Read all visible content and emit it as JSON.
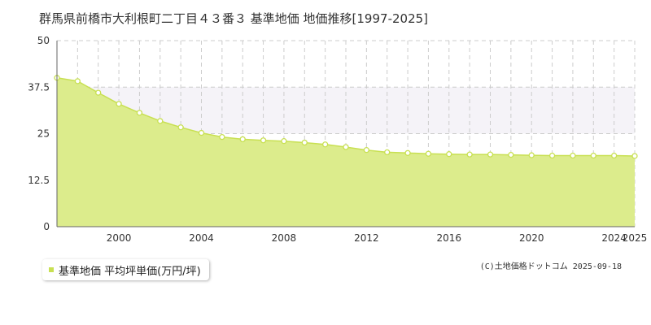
{
  "title": "群馬県前橋市大利根町二丁目４３番３ 基準地価 地価推移[1997-2025]",
  "legend": {
    "label": "基準地価 平均坪単価(万円/坪)"
  },
  "credit": "(C)土地価格ドットコム 2025-09-18",
  "colors": {
    "fill": "#dcec8c",
    "line": "#c8e052",
    "point_fill": "#ffffff",
    "grid": "#cccccc",
    "band": "#f5f3f8",
    "axis": "#666666"
  },
  "chart_data": {
    "type": "area",
    "title": "群馬県前橋市大利根町二丁目４３番３ 基準地価 地価推移[1997-2025]",
    "xlabel": "",
    "ylabel": "",
    "xlim": [
      1997,
      2025
    ],
    "ylim": [
      0,
      50
    ],
    "yticks": [
      0,
      12.5,
      25,
      37.5,
      50
    ],
    "ytick_labels": [
      "0",
      "12.5",
      "25",
      "37.5",
      "50"
    ],
    "xtick_labels": [
      "2000",
      "2004",
      "2008",
      "2012",
      "2016",
      "2020",
      "2024",
      "2025"
    ],
    "grid": true,
    "series": [
      {
        "name": "基準地価 平均坪単価(万円/坪)",
        "x": [
          1997,
          1998,
          1999,
          2000,
          2001,
          2002,
          2003,
          2004,
          2005,
          2006,
          2007,
          2008,
          2009,
          2010,
          2011,
          2012,
          2013,
          2014,
          2015,
          2016,
          2017,
          2018,
          2019,
          2020,
          2021,
          2022,
          2023,
          2024,
          2025
        ],
        "y": [
          40.0,
          39.1,
          36.0,
          33.0,
          30.6,
          28.4,
          26.7,
          25.2,
          24.1,
          23.5,
          23.2,
          23.0,
          22.6,
          22.1,
          21.4,
          20.6,
          20.0,
          19.8,
          19.6,
          19.5,
          19.4,
          19.4,
          19.3,
          19.2,
          19.1,
          19.1,
          19.1,
          19.1,
          19.0
        ]
      }
    ]
  }
}
